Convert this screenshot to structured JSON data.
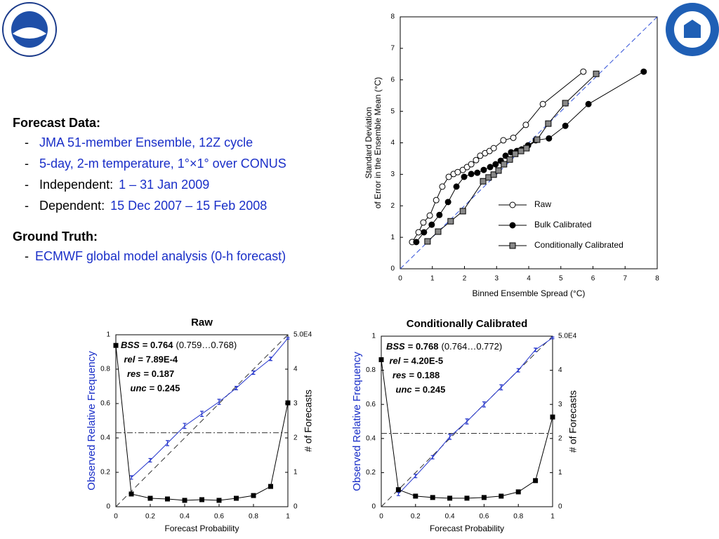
{
  "slide": {
    "sections": [
      {
        "heading": "Forecast Data:",
        "items": [
          {
            "bullet": "-",
            "text": "JMA 51-member Ensemble, 12Z cycle"
          },
          {
            "bullet": "-",
            "text": "5-day, 2-m temperature, 1°×1° over CONUS"
          },
          {
            "bullet": "-",
            "label": "Independent:",
            "text": "1 – 31 Jan 2009"
          },
          {
            "bullet": "-",
            "label": "Dependent:",
            "text": "15 Dec 2007 – 15 Feb 2008"
          }
        ]
      },
      {
        "heading": "Ground Truth:",
        "items": [
          {
            "bullet": "-",
            "text": "ECMWF global model analysis (0-h forecast)"
          }
        ]
      }
    ]
  },
  "chart_data": [
    {
      "type": "line",
      "x_label": "Binned Ensemble Spread (°C)",
      "y_label": [
        "Standard Deviation",
        "of Error in the Ensemble Mean (°C)"
      ],
      "xlim": [
        0,
        8
      ],
      "xticks": [
        0,
        1,
        2,
        3,
        4,
        5,
        6,
        7,
        8
      ],
      "ylim": [
        0,
        8
      ],
      "yticks": [
        0,
        1,
        2,
        3,
        4,
        5,
        6,
        7,
        8
      ],
      "diagonal": true,
      "legend": "lower right",
      "series": [
        {
          "name": "Raw",
          "color": "#000000",
          "marker": "open-circle",
          "x": [
            0.37,
            0.57,
            0.72,
            0.92,
            1.12,
            1.31,
            1.51,
            1.66,
            1.79,
            1.95,
            2.08,
            2.21,
            2.36,
            2.49,
            2.64,
            2.78,
            2.91,
            3.21,
            3.52,
            3.91,
            4.44,
            5.7
          ],
          "values": [
            0.85,
            1.16,
            1.47,
            1.69,
            2.18,
            2.61,
            2.92,
            3.01,
            3.07,
            3.14,
            3.23,
            3.32,
            3.45,
            3.59,
            3.67,
            3.74,
            3.83,
            4.08,
            4.16,
            4.57,
            5.23,
            6.26
          ]
        },
        {
          "name": "Bulk Calibrated",
          "color": "#000000",
          "marker": "filled-circle",
          "x": [
            0.5,
            0.74,
            0.98,
            1.22,
            1.49,
            1.75,
            1.99,
            2.21,
            2.4,
            2.6,
            2.8,
            2.97,
            3.13,
            3.28,
            3.45,
            3.63,
            3.78,
            3.98,
            4.22,
            4.63,
            5.14,
            5.86,
            7.58
          ],
          "values": [
            0.85,
            1.16,
            1.4,
            1.71,
            2.12,
            2.61,
            2.92,
            3.01,
            3.05,
            3.14,
            3.23,
            3.32,
            3.43,
            3.59,
            3.7,
            3.74,
            3.79,
            3.92,
            4.08,
            4.14,
            4.54,
            5.23,
            6.26
          ]
        },
        {
          "name": "Conditionally Calibrated",
          "color": "#000000",
          "marker": "gray-square",
          "x": [
            0.85,
            1.18,
            1.57,
            1.95,
            2.58,
            2.75,
            2.91,
            3.06,
            3.23,
            3.41,
            3.58,
            3.76,
            3.93,
            4.26,
            4.61,
            5.14,
            6.1
          ],
          "values": [
            0.87,
            1.18,
            1.51,
            1.83,
            2.78,
            2.9,
            2.99,
            3.12,
            3.32,
            3.47,
            3.65,
            3.74,
            3.83,
            4.1,
            4.61,
            5.26,
            6.19
          ]
        }
      ]
    },
    {
      "type": "reliability",
      "title": "Raw",
      "x_label": "Forecast Probability",
      "y_label": "Observed Relative Frequency",
      "y2_label": "# of Forecasts",
      "xlim": [
        0,
        1
      ],
      "xticks": [
        0,
        0.2,
        0.4,
        0.6,
        0.8,
        1
      ],
      "ylim": [
        0,
        1
      ],
      "yticks": [
        0,
        0.2,
        0.4,
        0.6,
        0.8,
        1
      ],
      "y2lim": [
        0,
        50000
      ],
      "y2ticks": [
        0,
        {
          "value": 10000,
          "label": "1"
        },
        {
          "value": 20000,
          "label": "2"
        },
        {
          "value": 30000,
          "label": "3"
        },
        {
          "value": 40000,
          "label": "4"
        },
        {
          "value": 50000,
          "label": "5.0E4"
        }
      ],
      "diagonal": true,
      "climatology": 0.43,
      "x": [
        0,
        0.09,
        0.2,
        0.3,
        0.4,
        0.5,
        0.6,
        0.7,
        0.8,
        0.9,
        1
      ],
      "series": [
        {
          "color": "#2233cc",
          "values": [
            null,
            0.17,
            0.27,
            0.37,
            0.47,
            0.54,
            0.61,
            0.69,
            0.78,
            0.86,
            0.98
          ],
          "errors": [
            null,
            0.01,
            0.01,
            0.015,
            0.015,
            0.015,
            0.015,
            0.01,
            0.01,
            0.01,
            0.005
          ]
        },
        {
          "color": "#000000",
          "axis": "y2",
          "values": [
            46900,
            3700,
            2450,
            2250,
            1850,
            2050,
            1850,
            2450,
            3250,
            5900,
            30200
          ]
        }
      ],
      "annotations": [
        {
          "name": "BSS",
          "value": "= 0.764",
          "range": "(0.759…0.768)"
        },
        {
          "name": "rel",
          "value": "= 7.89E-4"
        },
        {
          "name": "res",
          "value": "= 0.187"
        },
        {
          "name": "unc",
          "value": "= 0.245"
        }
      ]
    },
    {
      "type": "reliability",
      "title": "Conditionally Calibrated",
      "x_label": "Forecast Probability",
      "y_label": "Observed Relative Frequency",
      "y2_label": "# of Forecasts",
      "xlim": [
        0,
        1
      ],
      "xticks": [
        0,
        0.2,
        0.4,
        0.6,
        0.8,
        1
      ],
      "ylim": [
        0,
        1
      ],
      "yticks": [
        0,
        0.2,
        0.4,
        0.6,
        0.8,
        1
      ],
      "y2lim": [
        0,
        50000
      ],
      "y2ticks": [
        0,
        {
          "value": 10000,
          "label": "1"
        },
        {
          "value": 20000,
          "label": "2"
        },
        {
          "value": 30000,
          "label": "3"
        },
        {
          "value": 40000,
          "label": "4"
        },
        {
          "value": 50000,
          "label": "5.0E4"
        }
      ],
      "diagonal": true,
      "climatology": 0.43,
      "x": [
        0,
        0.1,
        0.2,
        0.3,
        0.4,
        0.5,
        0.6,
        0.7,
        0.8,
        0.9,
        1
      ],
      "series": [
        {
          "color": "#2233cc",
          "values": [
            null,
            0.075,
            0.18,
            0.29,
            0.41,
            0.5,
            0.6,
            0.7,
            0.8,
            0.92,
            0.99
          ],
          "errors": [
            null,
            0.01,
            0.01,
            0.01,
            0.015,
            0.015,
            0.015,
            0.015,
            0.01,
            0.01,
            0.005
          ]
        },
        {
          "color": "#000000",
          "axis": "y2",
          "values": [
            43100,
            5000,
            3100,
            2700,
            2500,
            2500,
            2700,
            3100,
            4350,
            7650,
            26300
          ]
        }
      ],
      "annotations": [
        {
          "name": "BSS",
          "value": "= 0.768",
          "range": "(0.764…0.772)"
        },
        {
          "name": "rel",
          "value": "= 4.20E-5"
        },
        {
          "name": "res",
          "value": "= 0.188"
        },
        {
          "name": "unc",
          "value": "= 0.245"
        }
      ]
    }
  ]
}
